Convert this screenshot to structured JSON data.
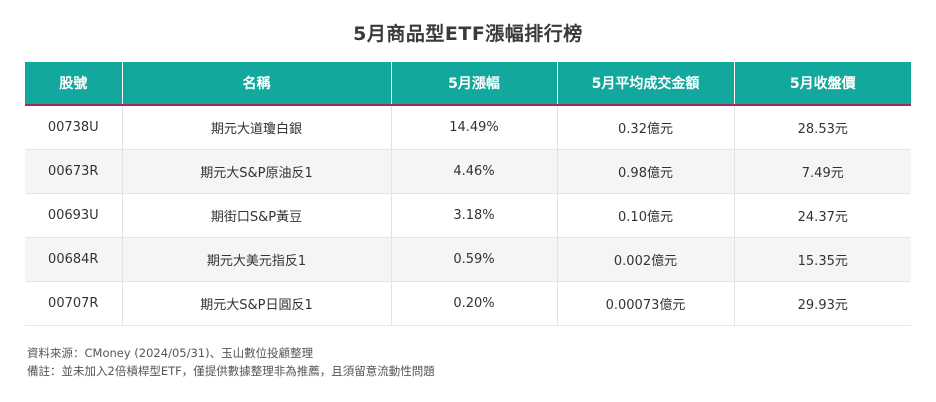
{
  "title": "5月商品型ETF漲幅排行榜",
  "table": {
    "headers": [
      "股號",
      "名稱",
      "5月漲幅",
      "5月平均成交金額",
      "5月收盤價"
    ],
    "rows": [
      [
        "00738U",
        "期元大道瓊白銀",
        "14.49%",
        "0.32億元",
        "28.53元"
      ],
      [
        "00673R",
        "期元大S&P原油反1",
        "4.46%",
        "0.98億元",
        "7.49元"
      ],
      [
        "00693U",
        "期街口S&P黃豆",
        "3.18%",
        "0.10億元",
        "24.37元"
      ],
      [
        "00684R",
        "期元大美元指反1",
        "0.59%",
        "0.002億元",
        "15.35元"
      ],
      [
        "00707R",
        "期元大S&P日圓反1",
        "0.20%",
        "0.00073億元",
        "29.93元"
      ]
    ]
  },
  "notes": {
    "source": "資料來源：CMoney (2024/05/31)、玉山數位投顧整理",
    "remark": "備註：並未加入2倍槓桿型ETF，僅提供數據整理非為推薦，且須留意流動性問題"
  },
  "colors": {
    "header_bg": "#13a89e",
    "header_underline": "#9c2a5f"
  }
}
